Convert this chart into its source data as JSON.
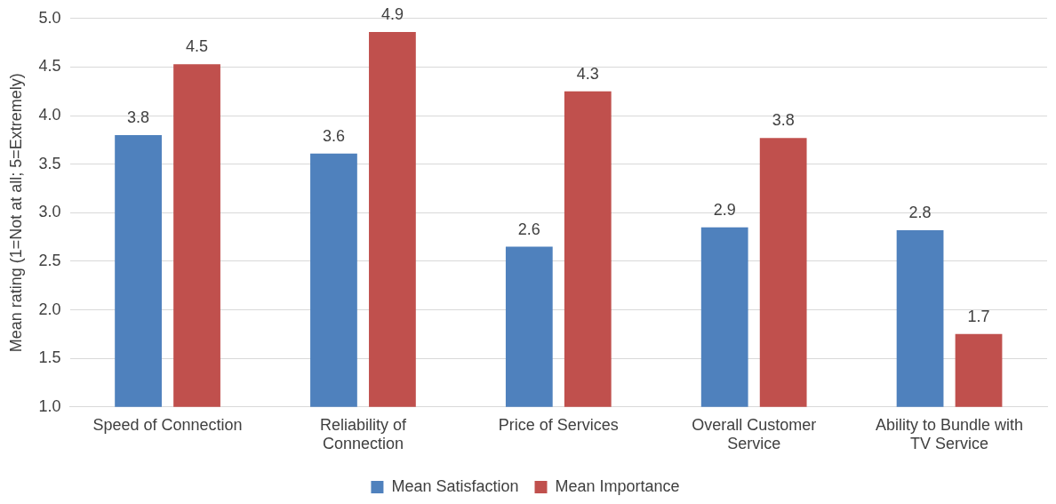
{
  "chart_data": {
    "type": "bar",
    "ylabel": "Mean rating (1=Not at all; 5=Extremely)",
    "categories": [
      "Speed of Connection",
      "Reliability of Connection",
      "Price of Services",
      "Overall Customer Service",
      "Ability to Bundle with TV Service"
    ],
    "series": [
      {
        "name": "Mean Satisfaction",
        "color": "#4f81bd",
        "values": [
          3.8,
          3.61,
          2.65,
          2.85,
          2.82
        ],
        "value_labels": [
          "3.8",
          "3.6",
          "2.6",
          "2.9",
          "2.8"
        ]
      },
      {
        "name": "Mean Importance",
        "color": "#c0504d",
        "values": [
          4.53,
          4.86,
          4.25,
          3.77,
          1.75
        ],
        "value_labels": [
          "4.5",
          "4.9",
          "4.3",
          "3.8",
          "1.7"
        ]
      }
    ],
    "ylim": [
      1.0,
      5.0
    ],
    "yticks": [
      {
        "value": 1,
        "label": "1.0"
      },
      {
        "value": 1.5,
        "label": "1.5"
      },
      {
        "value": 2,
        "label": "2.0"
      },
      {
        "value": 2.5,
        "label": "2.5"
      },
      {
        "value": 3,
        "label": "3.0"
      },
      {
        "value": 3.5,
        "label": "3.5"
      },
      {
        "value": 4,
        "label": "4.0"
      },
      {
        "value": 4.5,
        "label": "4.5"
      },
      {
        "value": 5,
        "label": "5.0"
      }
    ],
    "grid": "y",
    "legend": "bottom"
  }
}
